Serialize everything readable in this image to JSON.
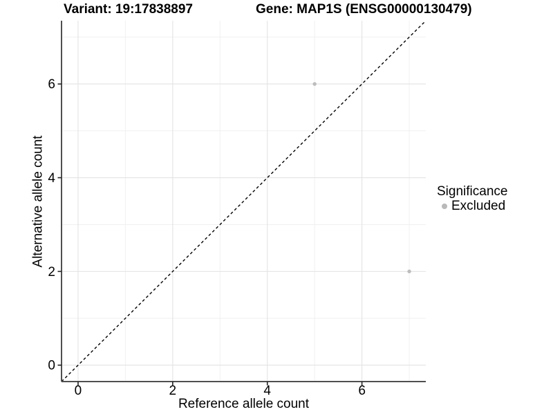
{
  "chart_data": {
    "type": "scatter",
    "title_left": "Variant: 19:17838897",
    "title_right": "Gene: MAP1S (ENSG00000130479)",
    "xlabel": "Reference allele count",
    "ylabel": "Alternative allele count",
    "xlim": [
      -0.35,
      7.35
    ],
    "ylim": [
      -0.35,
      7.35
    ],
    "x_major_ticks": [
      0,
      2,
      4,
      6
    ],
    "y_major_ticks": [
      0,
      2,
      4,
      6
    ],
    "x_minor_gridlines": [
      1,
      3,
      5,
      7
    ],
    "y_minor_gridlines": [
      1,
      3,
      5,
      7
    ],
    "grid": true,
    "points": [
      {
        "x": 5,
        "y": 6,
        "series": "Excluded"
      },
      {
        "x": 7,
        "y": 2,
        "series": "Excluded"
      }
    ],
    "reference_line": {
      "slope": 1,
      "intercept": 0,
      "style": "dashed"
    },
    "legend": {
      "title": "Significance",
      "position": "right",
      "items": [
        {
          "label": "Excluded",
          "color": "#b9b9b9"
        }
      ]
    }
  },
  "colors": {
    "background": "#ffffff",
    "axis_line": "#4f4f4f",
    "tick_mark": "#222222",
    "grid_major": "#e3e3e3",
    "grid_minor": "#f0f0f0",
    "text": "#000000",
    "point": "#bdbdbd",
    "reference_line": "#000000"
  }
}
